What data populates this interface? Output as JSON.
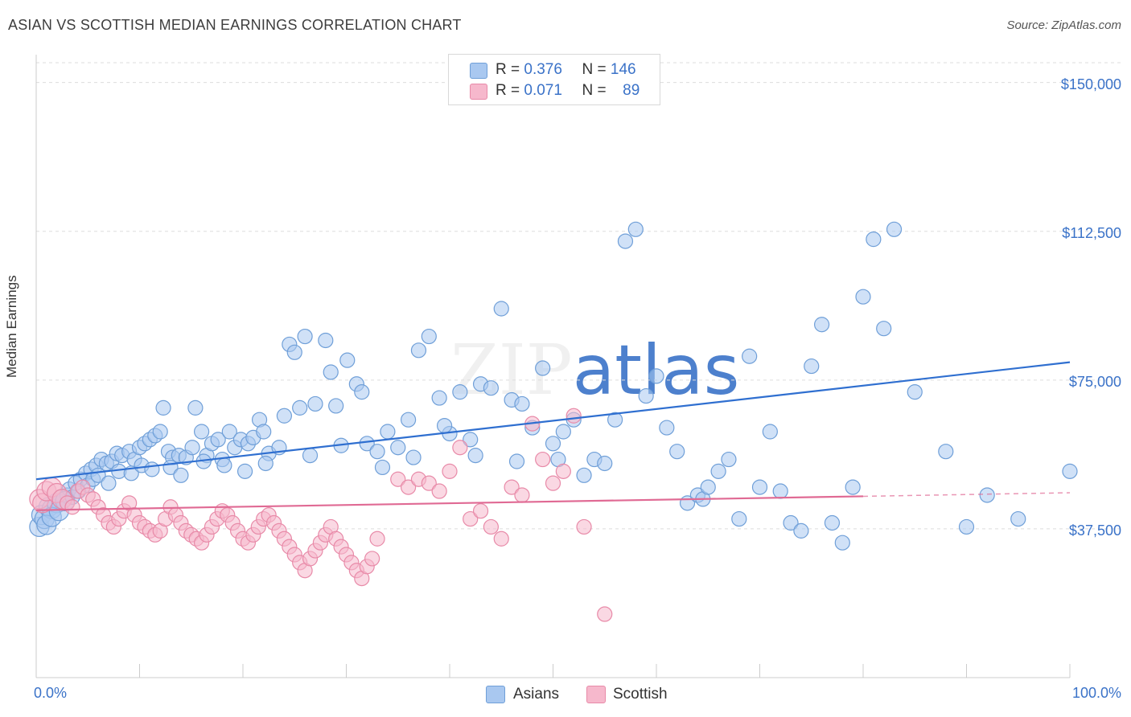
{
  "title": "ASIAN VS SCOTTISH MEDIAN EARNINGS CORRELATION CHART",
  "source": "Source: ZipAtlas.com",
  "watermark": "ZIPatlas",
  "legend": {
    "asians": {
      "r_label": "R =",
      "r_value": "0.376",
      "n_label": "N =",
      "n_value": "146"
    },
    "scottish": {
      "r_label": "R =",
      "r_value": "0.071",
      "n_label": "N =",
      "n_value": "89"
    }
  },
  "bottom_legend": {
    "asians": "Asians",
    "scottish": "Scottish"
  },
  "colors": {
    "asian_fill": "#a9c8f0",
    "asian_stroke": "#6f9fd8",
    "asian_line": "#2f6fd0",
    "scottish_fill": "#f6b8cc",
    "scottish_stroke": "#e88aa8",
    "scottish_line": "#e06a94",
    "grid": "#dddddd",
    "tick_label": "#3a72c8"
  },
  "chart_data": {
    "type": "scatter",
    "xlabel": "",
    "ylabel": "Median Earnings",
    "xlim": [
      0,
      100
    ],
    "ylim": [
      0,
      155000
    ],
    "x_tick_labels": [
      "0.0%",
      "100.0%"
    ],
    "y_ticks": [
      {
        "value": 37500,
        "label": "$37,500"
      },
      {
        "value": 75000,
        "label": "$75,000"
      },
      {
        "value": 112500,
        "label": "$112,500"
      },
      {
        "value": 150000,
        "label": "$150,000"
      }
    ],
    "grid": true,
    "series": [
      {
        "name": "Asians",
        "trend": {
          "x": [
            0,
            100
          ],
          "y": [
            50000,
            79500
          ],
          "style": "solid"
        },
        "points": [
          [
            0.3,
            38000
          ],
          [
            0.5,
            41000
          ],
          [
            0.8,
            40000
          ],
          [
            1.2,
            43000
          ],
          [
            1.5,
            42500
          ],
          [
            2,
            44000
          ],
          [
            2.5,
            45000
          ],
          [
            3,
            46000
          ],
          [
            3.2,
            47500
          ],
          [
            3.8,
            49000
          ],
          [
            4.3,
            50000
          ],
          [
            4.8,
            51500
          ],
          [
            5.3,
            52500
          ],
          [
            5.8,
            53500
          ],
          [
            6.3,
            55000
          ],
          [
            6.8,
            54000
          ],
          [
            7.3,
            54500
          ],
          [
            7.8,
            56500
          ],
          [
            8.3,
            56000
          ],
          [
            9,
            57000
          ],
          [
            9.5,
            55000
          ],
          [
            10,
            58000
          ],
          [
            10.5,
            59000
          ],
          [
            11,
            60000
          ],
          [
            11.5,
            61000
          ],
          [
            12,
            62000
          ],
          [
            12.3,
            68000
          ],
          [
            12.8,
            57000
          ],
          [
            13.2,
            55500
          ],
          [
            13.8,
            56000
          ],
          [
            14.5,
            55500
          ],
          [
            15.1,
            58000
          ],
          [
            15.4,
            68000
          ],
          [
            16,
            62000
          ],
          [
            16.5,
            56000
          ],
          [
            17,
            59000
          ],
          [
            17.6,
            60000
          ],
          [
            18,
            55000
          ],
          [
            18.7,
            62000
          ],
          [
            19.2,
            58000
          ],
          [
            19.8,
            60000
          ],
          [
            20.5,
            59000
          ],
          [
            21,
            60500
          ],
          [
            21.6,
            65000
          ],
          [
            22,
            62000
          ],
          [
            22.5,
            56500
          ],
          [
            23.5,
            58000
          ],
          [
            24,
            66000
          ],
          [
            24.5,
            84000
          ],
          [
            25,
            82000
          ],
          [
            25.5,
            68000
          ],
          [
            26,
            86000
          ],
          [
            27,
            69000
          ],
          [
            28,
            85000
          ],
          [
            28.5,
            77000
          ],
          [
            29,
            68500
          ],
          [
            30.1,
            80000
          ],
          [
            31,
            74000
          ],
          [
            31.5,
            72000
          ],
          [
            32,
            59000
          ],
          [
            33,
            57000
          ],
          [
            34,
            62000
          ],
          [
            35,
            58000
          ],
          [
            36,
            65000
          ],
          [
            37,
            82500
          ],
          [
            38,
            86000
          ],
          [
            39,
            70500
          ],
          [
            40,
            61500
          ],
          [
            41,
            72000
          ],
          [
            42,
            60000
          ],
          [
            43,
            74000
          ],
          [
            44,
            73000
          ],
          [
            45,
            93000
          ],
          [
            46,
            70000
          ],
          [
            47,
            69000
          ],
          [
            48,
            63000
          ],
          [
            49,
            78000
          ],
          [
            50,
            59000
          ],
          [
            50.5,
            55000
          ],
          [
            51,
            62000
          ],
          [
            52,
            65000
          ],
          [
            53,
            51000
          ],
          [
            54,
            55000
          ],
          [
            55,
            54000
          ],
          [
            56,
            65000
          ],
          [
            57,
            110000
          ],
          [
            58,
            113000
          ],
          [
            59,
            71000
          ],
          [
            60,
            76000
          ],
          [
            61,
            63000
          ],
          [
            62,
            57000
          ],
          [
            63,
            44000
          ],
          [
            64,
            46000
          ],
          [
            64.5,
            45000
          ],
          [
            65,
            48000
          ],
          [
            66,
            52000
          ],
          [
            67,
            55000
          ],
          [
            68,
            40000
          ],
          [
            69,
            81000
          ],
          [
            70,
            48000
          ],
          [
            71,
            62000
          ],
          [
            72,
            47000
          ],
          [
            73,
            39000
          ],
          [
            74,
            37000
          ],
          [
            75,
            78500
          ],
          [
            76,
            89000
          ],
          [
            77,
            39000
          ],
          [
            78,
            34000
          ],
          [
            79,
            48000
          ],
          [
            80,
            96000
          ],
          [
            81,
            110500
          ],
          [
            82,
            88000
          ],
          [
            83,
            113000
          ],
          [
            85,
            72000
          ],
          [
            88,
            57000
          ],
          [
            90,
            38000
          ],
          [
            92,
            46000
          ],
          [
            95,
            40000
          ],
          [
            100,
            52000
          ],
          [
            1,
            38500
          ],
          [
            1.5,
            40500
          ],
          [
            2.2,
            42000
          ],
          [
            2.8,
            44500
          ],
          [
            3.5,
            45500
          ],
          [
            4.1,
            47000
          ],
          [
            5,
            48500
          ],
          [
            5.5,
            50000
          ],
          [
            6,
            51000
          ],
          [
            7,
            49000
          ],
          [
            8,
            52000
          ],
          [
            9.2,
            51500
          ],
          [
            10.2,
            53500
          ],
          [
            11.2,
            52500
          ],
          [
            13,
            53000
          ],
          [
            14,
            51000
          ],
          [
            16.2,
            54500
          ],
          [
            18.2,
            53500
          ],
          [
            20.2,
            52000
          ],
          [
            22.2,
            54000
          ],
          [
            26.5,
            56000
          ],
          [
            29.5,
            58500
          ],
          [
            33.5,
            53000
          ],
          [
            36.5,
            55500
          ],
          [
            39.5,
            63500
          ],
          [
            42.5,
            56000
          ],
          [
            46.5,
            54500
          ]
        ]
      },
      {
        "name": "Scottish",
        "trend": {
          "x": [
            0,
            80
          ],
          "y": [
            42200,
            45700
          ],
          "style": "solid",
          "extension": {
            "x": [
              80,
              100
            ],
            "y": [
              45700,
              46600
            ]
          }
        },
        "points": [
          [
            0.3,
            45000
          ],
          [
            0.6,
            44000
          ],
          [
            1,
            47000
          ],
          [
            1.5,
            48000
          ],
          [
            2,
            46500
          ],
          [
            2.5,
            45000
          ],
          [
            3,
            44000
          ],
          [
            3.5,
            43000
          ],
          [
            4,
            47000
          ],
          [
            4.5,
            48000
          ],
          [
            5,
            46000
          ],
          [
            5.5,
            45000
          ],
          [
            6,
            43000
          ],
          [
            6.5,
            41000
          ],
          [
            7,
            39000
          ],
          [
            7.5,
            38000
          ],
          [
            8,
            40000
          ],
          [
            8.5,
            42000
          ],
          [
            9,
            44000
          ],
          [
            9.5,
            41000
          ],
          [
            10,
            39000
          ],
          [
            10.5,
            38000
          ],
          [
            11,
            37000
          ],
          [
            11.5,
            36000
          ],
          [
            12,
            37000
          ],
          [
            12.5,
            40000
          ],
          [
            13,
            43000
          ],
          [
            13.5,
            41000
          ],
          [
            14,
            39000
          ],
          [
            14.5,
            37000
          ],
          [
            15,
            36000
          ],
          [
            15.5,
            35000
          ],
          [
            16,
            34000
          ],
          [
            16.5,
            36000
          ],
          [
            17,
            38000
          ],
          [
            17.5,
            40000
          ],
          [
            18,
            42000
          ],
          [
            18.5,
            41000
          ],
          [
            19,
            39000
          ],
          [
            19.5,
            37000
          ],
          [
            20,
            35000
          ],
          [
            20.5,
            34000
          ],
          [
            21,
            36000
          ],
          [
            21.5,
            38000
          ],
          [
            22,
            40000
          ],
          [
            22.5,
            41000
          ],
          [
            23,
            39000
          ],
          [
            23.5,
            37000
          ],
          [
            24,
            35000
          ],
          [
            24.5,
            33000
          ],
          [
            25,
            31000
          ],
          [
            25.5,
            29000
          ],
          [
            26,
            27000
          ],
          [
            26.5,
            30000
          ],
          [
            27,
            32000
          ],
          [
            27.5,
            34000
          ],
          [
            28,
            36000
          ],
          [
            28.5,
            38000
          ],
          [
            29,
            35000
          ],
          [
            29.5,
            33000
          ],
          [
            30,
            31000
          ],
          [
            30.5,
            29000
          ],
          [
            31,
            27000
          ],
          [
            31.5,
            25000
          ],
          [
            32,
            28000
          ],
          [
            32.5,
            30000
          ],
          [
            33,
            35000
          ],
          [
            35,
            50000
          ],
          [
            36,
            48000
          ],
          [
            37,
            50000
          ],
          [
            38,
            49000
          ],
          [
            39,
            47000
          ],
          [
            40,
            52000
          ],
          [
            41,
            58000
          ],
          [
            42,
            40000
          ],
          [
            43,
            42000
          ],
          [
            44,
            38000
          ],
          [
            45,
            35000
          ],
          [
            46,
            48000
          ],
          [
            47,
            46000
          ],
          [
            48,
            64000
          ],
          [
            49,
            55000
          ],
          [
            50,
            49000
          ],
          [
            51,
            52000
          ],
          [
            52,
            66000
          ],
          [
            53,
            38000
          ],
          [
            55,
            16000
          ]
        ]
      }
    ]
  }
}
